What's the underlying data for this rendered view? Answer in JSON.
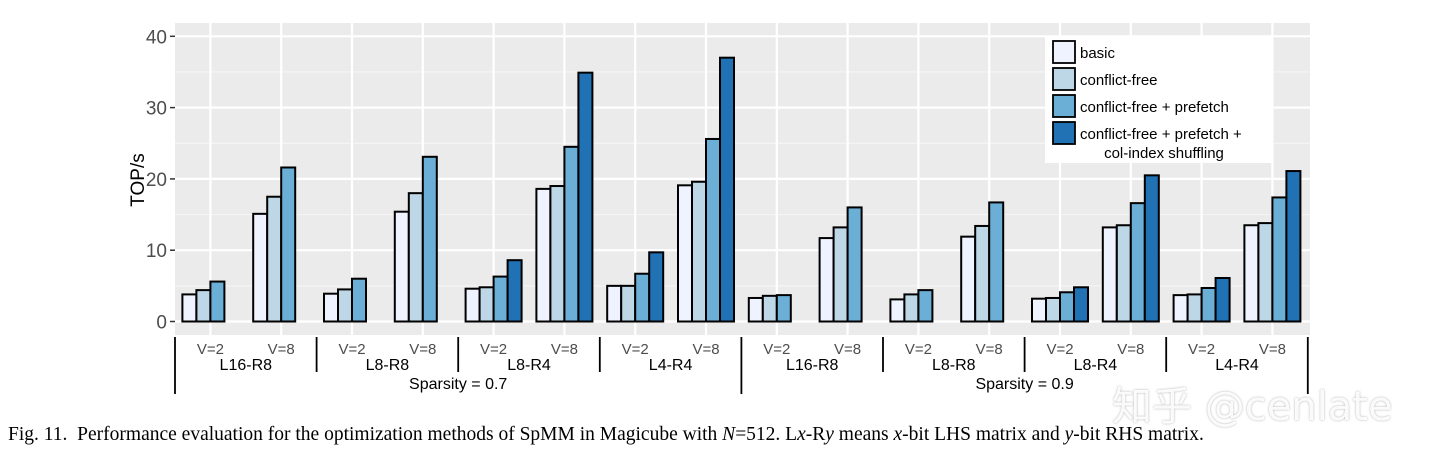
{
  "chart_data": {
    "type": "bar",
    "ylabel": "TOP/s",
    "ylim": [
      0,
      42
    ],
    "yticks": [
      0,
      10,
      20,
      30,
      40
    ],
    "grid": true,
    "legend_position": "top-right",
    "series": [
      {
        "name": "basic",
        "color": "#eff3ff"
      },
      {
        "name": "conflict-free",
        "color": "#bdd7e7"
      },
      {
        "name": "conflict-free + prefetch",
        "color": "#6baed6"
      },
      {
        "name": "conflict-free + prefetch + col-index shuffling",
        "legend_lines": [
          "conflict-free + prefetch +",
          "col-index shuffling"
        ],
        "color": "#2171b5"
      }
    ],
    "sparsity_groups": [
      {
        "label": "Sparsity = 0.7",
        "configs": [
          {
            "label": "L16-R8",
            "subgroups": [
              {
                "label": "V=2",
                "values": [
                  3.8,
                  4.4,
                  5.6
                ]
              },
              {
                "label": "V=8",
                "values": [
                  15.1,
                  17.5,
                  21.6
                ]
              }
            ]
          },
          {
            "label": "L8-R8",
            "subgroups": [
              {
                "label": "V=2",
                "values": [
                  3.9,
                  4.5,
                  6.0
                ]
              },
              {
                "label": "V=8",
                "values": [
                  15.4,
                  18.0,
                  23.1
                ]
              }
            ]
          },
          {
            "label": "L8-R4",
            "subgroups": [
              {
                "label": "V=2",
                "values": [
                  4.6,
                  4.8,
                  6.3,
                  8.6
                ]
              },
              {
                "label": "V=8",
                "values": [
                  18.6,
                  19.0,
                  24.5,
                  34.9
                ]
              }
            ]
          },
          {
            "label": "L4-R4",
            "subgroups": [
              {
                "label": "V=2",
                "values": [
                  5.0,
                  5.0,
                  6.7,
                  9.7
                ]
              },
              {
                "label": "V=8",
                "values": [
                  19.1,
                  19.6,
                  25.6,
                  37.0
                ]
              }
            ]
          }
        ]
      },
      {
        "label": "Sparsity = 0.9",
        "configs": [
          {
            "label": "L16-R8",
            "subgroups": [
              {
                "label": "V=2",
                "values": [
                  3.3,
                  3.6,
                  3.7
                ]
              },
              {
                "label": "V=8",
                "values": [
                  11.7,
                  13.2,
                  16.0
                ]
              }
            ]
          },
          {
            "label": "L8-R8",
            "subgroups": [
              {
                "label": "V=2",
                "values": [
                  3.1,
                  3.8,
                  4.4
                ]
              },
              {
                "label": "V=8",
                "values": [
                  11.9,
                  13.4,
                  16.7
                ]
              }
            ]
          },
          {
            "label": "L8-R4",
            "subgroups": [
              {
                "label": "V=2",
                "values": [
                  3.2,
                  3.3,
                  4.1,
                  4.8
                ]
              },
              {
                "label": "V=8",
                "values": [
                  13.2,
                  13.5,
                  16.6,
                  20.5
                ]
              }
            ]
          },
          {
            "label": "L4-R4",
            "subgroups": [
              {
                "label": "V=2",
                "values": [
                  3.7,
                  3.8,
                  4.7,
                  6.1
                ]
              },
              {
                "label": "V=8",
                "values": [
                  13.5,
                  13.8,
                  17.4,
                  21.1
                ]
              }
            ]
          }
        ]
      }
    ]
  },
  "caption": {
    "fig_label": "Fig. 11.",
    "text_prefix": "Performance evaluation for the optimization methods of SpMM in Magicube with ",
    "math_var_n": "N",
    "text_n_value": "=512. L",
    "math_var_x": "x",
    "text_dash_r": "-R",
    "math_var_y": "y",
    "text_means": " means ",
    "math_var_x2": "x",
    "text_lhs": "-bit LHS matrix and ",
    "math_var_y2": "y",
    "text_rhs": "-bit RHS matrix."
  },
  "watermark": "知乎 @cenlate"
}
